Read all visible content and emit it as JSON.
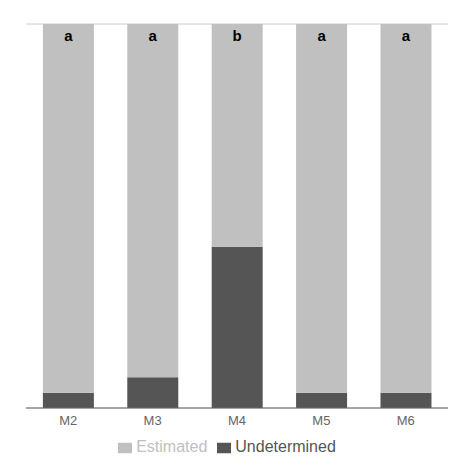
{
  "chart_data": {
    "type": "bar",
    "stacked": true,
    "categories": [
      "M2",
      "M3",
      "M4",
      "M5",
      "M6"
    ],
    "series": [
      {
        "name": "Undetermined",
        "color": "#555555",
        "values": [
          4,
          8,
          42,
          4,
          4
        ]
      },
      {
        "name": "Estimated",
        "color": "#c0c0c0",
        "values": [
          96,
          92,
          58,
          96,
          96
        ]
      }
    ],
    "annotations": [
      "a",
      "a",
      "b",
      "a",
      "a"
    ],
    "ylim": [
      0,
      100
    ],
    "yticks": [
      0,
      10,
      20,
      30,
      40,
      50,
      60,
      70,
      80,
      90,
      100
    ],
    "grid": true,
    "tick_labels": "x",
    "legend": "bottom"
  }
}
